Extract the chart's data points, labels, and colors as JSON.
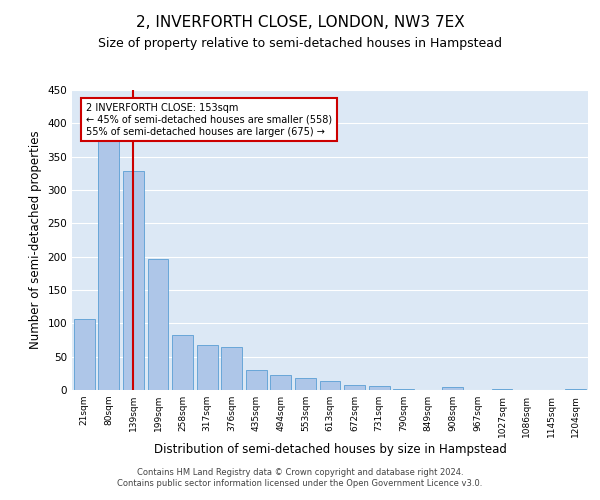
{
  "title": "2, INVERFORTH CLOSE, LONDON, NW3 7EX",
  "subtitle": "Size of property relative to semi-detached houses in Hampstead",
  "xlabel": "Distribution of semi-detached houses by size in Hampstead",
  "ylabel": "Number of semi-detached properties",
  "categories": [
    "21sqm",
    "80sqm",
    "139sqm",
    "199sqm",
    "258sqm",
    "317sqm",
    "376sqm",
    "435sqm",
    "494sqm",
    "553sqm",
    "613sqm",
    "672sqm",
    "731sqm",
    "790sqm",
    "849sqm",
    "908sqm",
    "967sqm",
    "1027sqm",
    "1086sqm",
    "1145sqm",
    "1204sqm"
  ],
  "values": [
    107,
    390,
    328,
    196,
    83,
    68,
    65,
    30,
    22,
    18,
    13,
    7,
    6,
    1,
    0,
    5,
    0,
    1,
    0,
    0,
    2
  ],
  "bar_color": "#aec6e8",
  "bar_edge_color": "#5a9fd4",
  "vline_x": 2,
  "vline_color": "#cc0000",
  "annotation_text": "2 INVERFORTH CLOSE: 153sqm\n← 45% of semi-detached houses are smaller (558)\n55% of semi-detached houses are larger (675) →",
  "annotation_box_color": "#ffffff",
  "annotation_box_edge_color": "#cc0000",
  "background_color": "#ffffff",
  "plot_bg_color": "#dce8f5",
  "grid_color": "#ffffff",
  "ylim": [
    0,
    450
  ],
  "yticks": [
    0,
    50,
    100,
    150,
    200,
    250,
    300,
    350,
    400,
    450
  ],
  "title_fontsize": 11,
  "subtitle_fontsize": 9,
  "xlabel_fontsize": 8.5,
  "ylabel_fontsize": 8.5,
  "footer_line1": "Contains HM Land Registry data © Crown copyright and database right 2024.",
  "footer_line2": "Contains public sector information licensed under the Open Government Licence v3.0."
}
